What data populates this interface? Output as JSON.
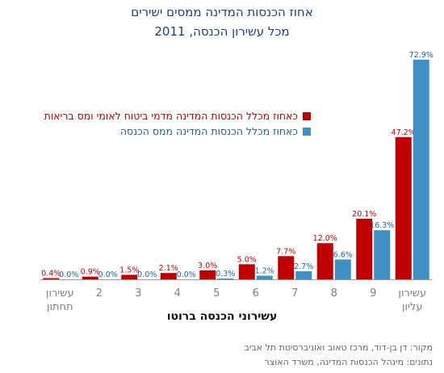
{
  "title_line1": "אחוז הכנסות המדינה ממסים ישירים",
  "title_line2": "מכל עשירון הכנסה, 2011",
  "legend": [
    {
      "label": "כאחוז מכלל הכנסות המדינה מדמי ביטוח לאומי ומס בריאות",
      "color": "#c00000"
    },
    {
      "label": "כאחוז מכלל הכנסות המדינה ממס הכנסה",
      "color": "#3f8fc4"
    }
  ],
  "source_line1": "מקור: דן בן-דוד, מרכז טאוב ואוניברסיטת תל אביב",
  "source_line2": "נתונים: מינהל הכנסות המדינה, משרד האוצר",
  "chart_data": {
    "type": "bar",
    "title": "אחוז הכנסות המדינה ממסים ישירים מכל עשירון הכנסה, 2011",
    "xlabel": "עשירוני הכנסה ברוטו",
    "ylabel": "",
    "ylim": [
      0,
      75
    ],
    "grid": false,
    "categories": [
      "עשירון תחתון",
      "2",
      "3",
      "4",
      "5",
      "6",
      "7",
      "8",
      "9",
      "עשירון עליון"
    ],
    "series": [
      {
        "name": "כאחוז מכלל הכנסות המדינה מדמי ביטוח לאומי ומס בריאות",
        "color": "#c00000",
        "values": [
          0.4,
          0.9,
          1.5,
          2.1,
          3.0,
          5.0,
          7.7,
          12.0,
          20.1,
          47.2
        ],
        "labels": [
          "0.4%",
          "0.9%",
          "1.5%",
          "2.1%",
          "3.0%",
          "5.0%",
          "7.7%",
          "12.0%",
          "20.1%",
          "47.2%"
        ]
      },
      {
        "name": "כאחוז מכלל הכנסות המדינה ממס הכנסה",
        "color": "#3f8fc4",
        "values": [
          0.0,
          0.0,
          0.0,
          0.0,
          0.3,
          1.2,
          2.7,
          6.6,
          16.3,
          72.9
        ],
        "labels": [
          "0.0%",
          "0.0%",
          "0.0%",
          "0.0%",
          "0.3%",
          "1.2%",
          "2.7%",
          "6.6%",
          "16.3%",
          "72.9%"
        ]
      }
    ]
  }
}
